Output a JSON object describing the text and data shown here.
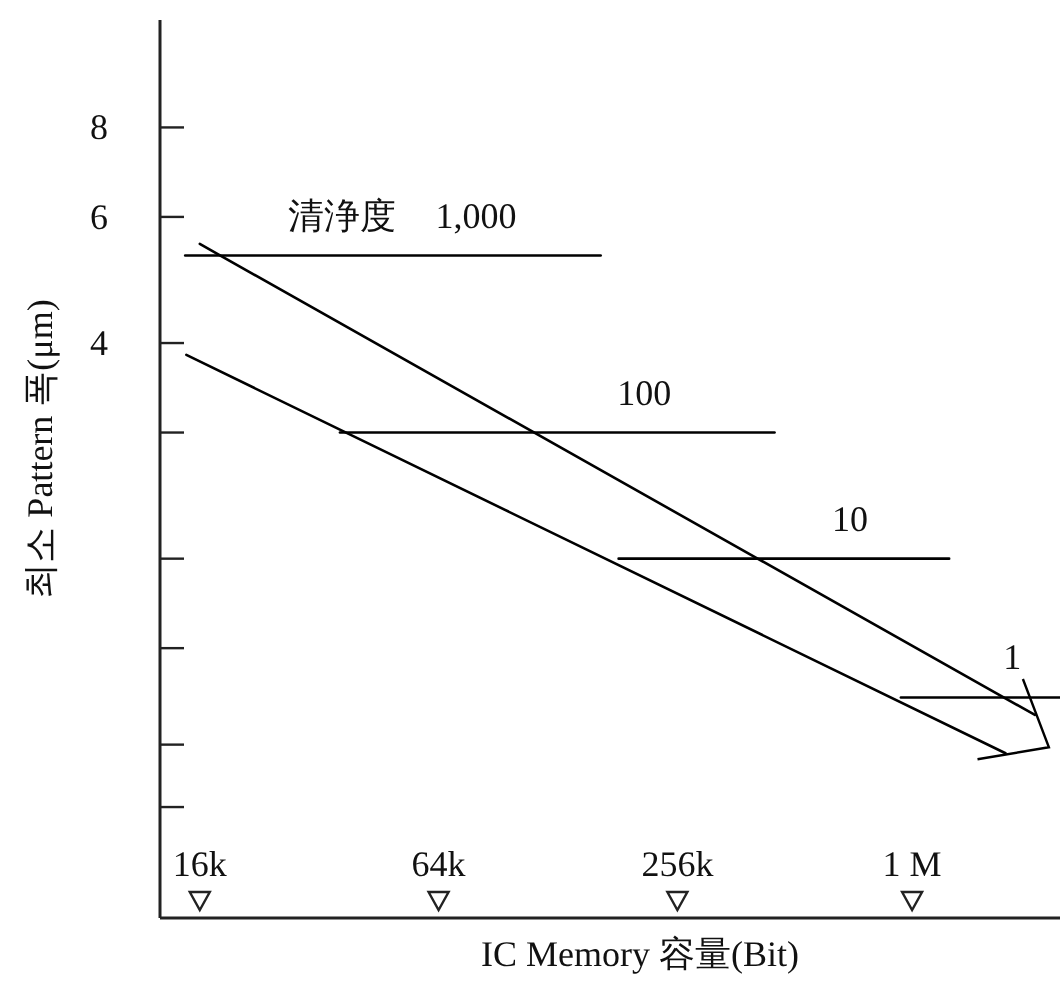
{
  "chart_data": {
    "type": "line",
    "xlabel": "IC Memory 容量(Bit)",
    "ylabel": "최소 Pattern 폭(μm)",
    "log": "xy",
    "grid": false,
    "marker": "none",
    "line_style": "solid",
    "xlim": [
      12700,
      2360000
    ],
    "xticks": [
      {
        "value": 16000,
        "label": "16k"
      },
      {
        "value": 64000,
        "label": "64k"
      },
      {
        "value": 256000,
        "label": "256k"
      },
      {
        "value": 1000000,
        "label": "1 M"
      }
    ],
    "ylim": [
      0.63,
      11.3
    ],
    "yticks": [
      8,
      6,
      4,
      {
        "value": 3,
        "label": null
      },
      {
        "value": 2,
        "label": null
      },
      {
        "value": 1.5,
        "label": null
      },
      {
        "value": 1.1,
        "label": null
      },
      {
        "value": 0.9,
        "label": null
      }
    ],
    "annotations": [
      "清浄度"
    ],
    "series": [
      {
        "color": "#000000",
        "x": [
          16000,
          2040000
        ],
        "values": [
          5.5,
          1.21
        ]
      },
      {
        "color": "#000000",
        "x": [
          14800,
          1720000
        ],
        "values": [
          3.85,
          1.07
        ]
      },
      {
        "name": "1,000",
        "color": "#000000",
        "x": [
          14700,
          164000
        ],
        "values": [
          5.3,
          5.3
        ]
      },
      {
        "name": "100",
        "color": "#000000",
        "x": [
          36100,
          450000
        ],
        "values": [
          3.0,
          3.0
        ]
      },
      {
        "name": "10",
        "color": "#000000",
        "x": [
          182000,
          1240000
        ],
        "values": [
          2.0,
          2.0
        ]
      },
      {
        "name": "1",
        "color": "#000000",
        "x": [
          937000,
          2360000
        ],
        "values": [
          1.28,
          1.28
        ]
      }
    ]
  }
}
